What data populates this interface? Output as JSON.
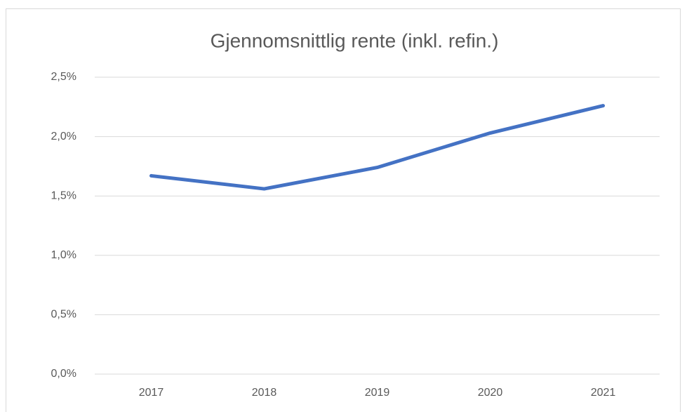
{
  "chart_data": {
    "type": "line",
    "title": "Gjennomsnittlig rente (inkl. refin.)",
    "categories": [
      "2017",
      "2018",
      "2019",
      "2020",
      "2021"
    ],
    "values": [
      1.67,
      1.56,
      1.74,
      2.03,
      2.26
    ],
    "color": "#4472c4",
    "ylim": [
      0,
      2.5
    ],
    "yticks": [
      {
        "value": 0,
        "label": "0,0%"
      },
      {
        "value": 0.5,
        "label": "0,5%"
      },
      {
        "value": 1.0,
        "label": "1,0%"
      },
      {
        "value": 1.5,
        "label": "1,5%"
      },
      {
        "value": 2.0,
        "label": "2,0%"
      },
      {
        "value": 2.5,
        "label": "2,5%"
      }
    ],
    "grid": true
  }
}
